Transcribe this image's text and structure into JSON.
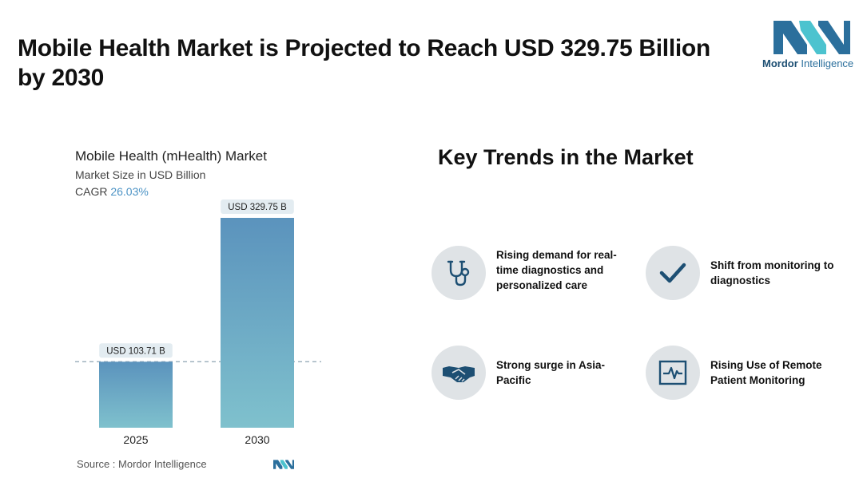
{
  "headline": "Mobile Health Market is Projected to Reach USD 329.75 Billion by 2030",
  "logo": {
    "brand": "Mordor",
    "suffix": " Intelligence",
    "colors": [
      "#2b6f9c",
      "#4cc3cf"
    ]
  },
  "chart_data": {
    "type": "bar",
    "title": "Mobile Health (mHealth) Market",
    "subtitle": "Market Size in USD Billion",
    "cagr_label": "CAGR",
    "cagr_value": "26.03%",
    "categories": [
      "2025",
      "2030"
    ],
    "values": [
      103.71,
      329.75
    ],
    "value_labels": [
      "USD 103.71 B",
      "USD 329.75 B"
    ],
    "ylim": [
      0,
      329.75
    ],
    "grid": false,
    "reference_line": 103.71,
    "bar_colors": {
      "top": "#5b93bd",
      "bottom": "#7fc1cd"
    }
  },
  "source": "Source :  Mordor Intelligence",
  "trends": {
    "title": "Key Trends in the Market",
    "items": [
      {
        "label": "Rising demand for real-time diagnostics and personalized care",
        "icon": "stethoscope-icon"
      },
      {
        "label": "Shift from monitoring to diagnostics",
        "icon": "checkmark-icon"
      },
      {
        "label": "Strong surge in Asia-Pacific",
        "icon": "handshake-icon"
      },
      {
        "label": "Rising Use of Remote Patient Monitoring",
        "icon": "heartbeat-monitor-icon"
      }
    ]
  }
}
